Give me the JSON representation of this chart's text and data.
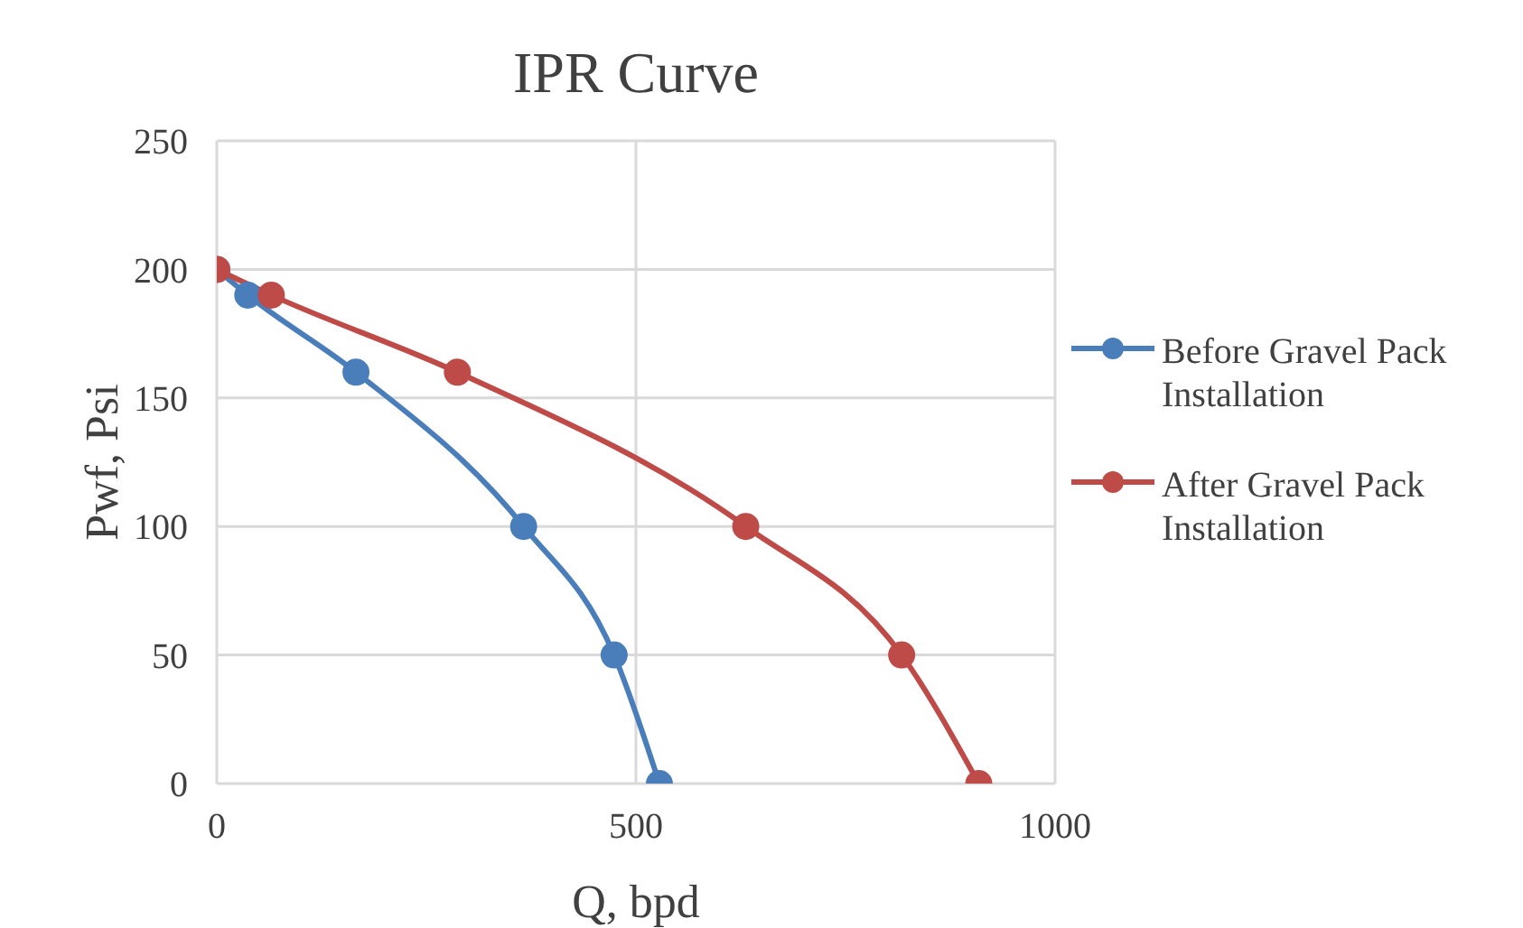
{
  "chart_data": {
    "type": "line",
    "title": "IPR Curve",
    "xlabel": "Q, bpd",
    "ylabel": "Pwf, Psi",
    "xlim": [
      0,
      1000
    ],
    "xticks": [
      0,
      500,
      1000
    ],
    "ylim": [
      0,
      250
    ],
    "yticks": [
      0,
      50,
      100,
      150,
      200,
      250
    ],
    "grid": true,
    "legend": "right",
    "marker": "circle",
    "line_style": "solid",
    "series": [
      {
        "name": "Before Gravel Pack Installation",
        "color": "#4a7ebb",
        "x": [
          0,
          37,
          166,
          366,
          474,
          528
        ],
        "values": [
          200,
          190,
          160,
          100,
          50,
          0
        ]
      },
      {
        "name": "After Gravel Pack Installation",
        "color": "#be4b48",
        "x": [
          0,
          65,
          287,
          631,
          817,
          909
        ],
        "values": [
          200,
          190,
          160,
          100,
          50,
          0
        ]
      }
    ]
  }
}
